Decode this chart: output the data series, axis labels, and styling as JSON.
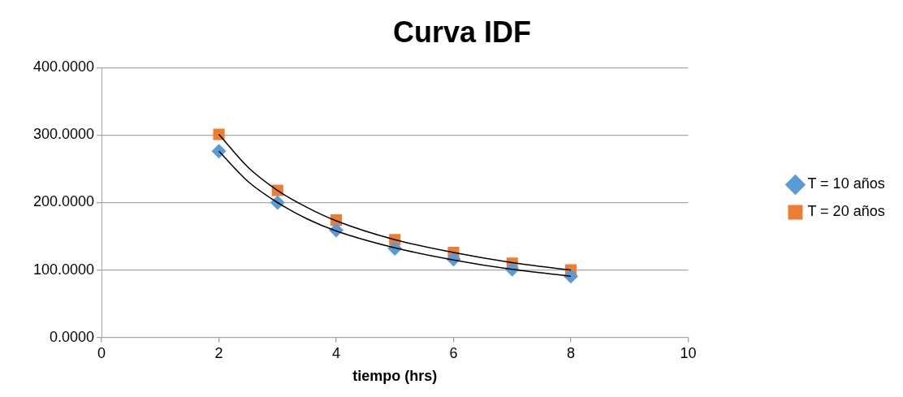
{
  "chart_data": {
    "type": "scatter",
    "title": "Curva IDF",
    "xlabel": "tiempo (hrs)",
    "xlim": [
      0,
      10
    ],
    "xticks": [
      0,
      2,
      4,
      6,
      8,
      10
    ],
    "ylim": [
      0,
      400
    ],
    "yticks": [
      {
        "value": 0,
        "label": "0.0000"
      },
      {
        "value": 100,
        "label": "100.0000"
      },
      {
        "value": 200,
        "label": "200.0000"
      },
      {
        "value": 300,
        "label": "300.0000"
      },
      {
        "value": 400,
        "label": "400.0000"
      }
    ],
    "grid": "y",
    "legend": "right",
    "series": [
      {
        "name": "T = 10 años",
        "marker": "diamond",
        "color": "#5b9bd5",
        "x": [
          2,
          3,
          4,
          5,
          6,
          7,
          8
        ],
        "values": [
          276,
          200,
          159,
          132,
          116,
          101,
          91
        ]
      },
      {
        "name": "T = 20 años",
        "marker": "square",
        "color": "#ed7d31",
        "x": [
          2,
          3,
          4,
          5,
          6,
          7,
          8
        ],
        "values": [
          301,
          218,
          174,
          145,
          126,
          110,
          100
        ]
      },
      {
        "type": "line",
        "marker": "none",
        "line_style": "solid",
        "color": "#000000",
        "x": [
          2,
          2.5,
          3,
          3.5,
          4,
          5,
          6,
          7,
          8
        ],
        "values": [
          276,
          231,
          200,
          176,
          158,
          133,
          115,
          101,
          91
        ]
      },
      {
        "type": "line",
        "marker": "none",
        "line_style": "solid",
        "color": "#000000",
        "x": [
          2,
          2.5,
          3,
          3.5,
          4,
          5,
          6,
          7,
          8
        ],
        "values": [
          301,
          252,
          218,
          193,
          173,
          145,
          126,
          111,
          100
        ]
      }
    ]
  }
}
